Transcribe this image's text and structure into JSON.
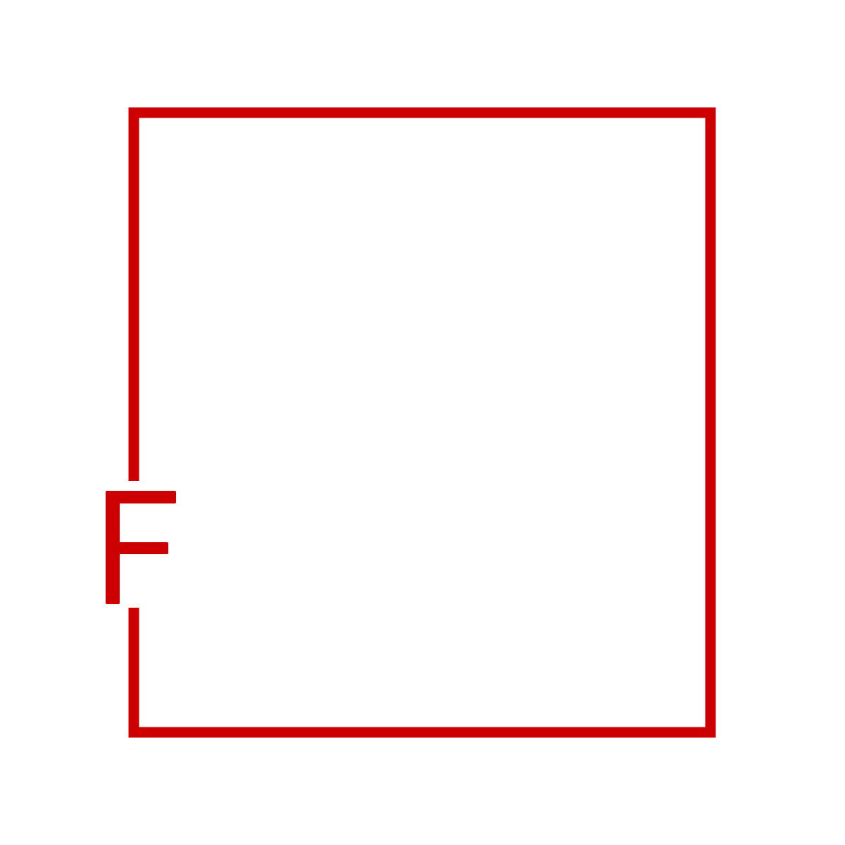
{
  "logo": {
    "letter": "F",
    "accent_color": "#cc0000",
    "background_color": "#ffffff"
  }
}
